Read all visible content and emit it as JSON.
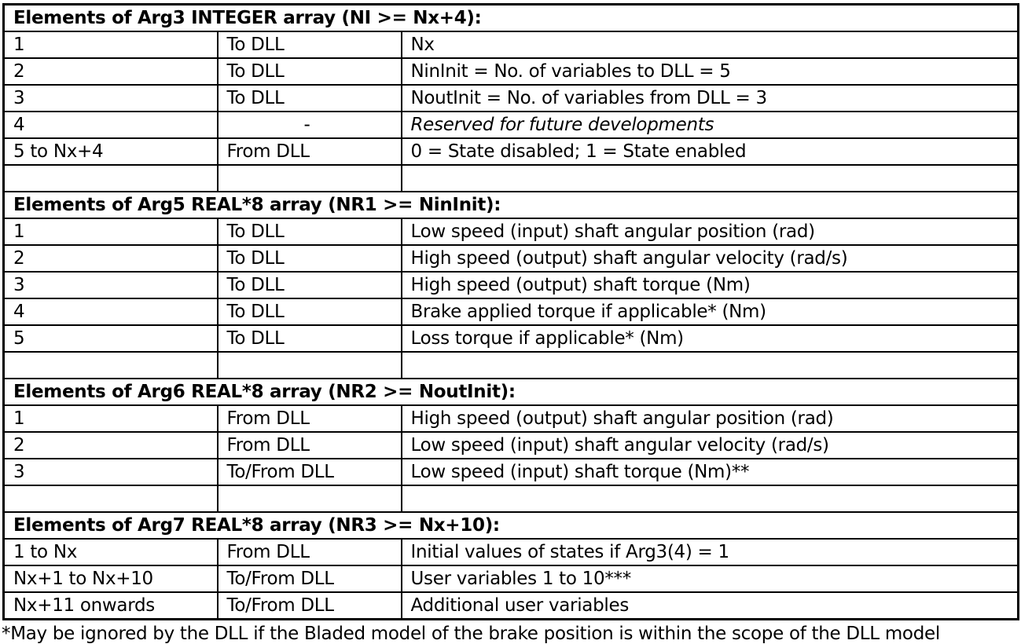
{
  "page": {
    "background": "#ffffff",
    "text_color": "#000000",
    "border_color": "#000000"
  },
  "table": {
    "sections": [
      {
        "header": "Elements of Arg3 INTEGER array (NI >= Nx+4):",
        "rows": [
          {
            "element": "1",
            "direction": "To DLL",
            "description": "Nx"
          },
          {
            "element": "2",
            "direction": "To DLL",
            "description": "NinInit = No. of variables to DLL = 5"
          },
          {
            "element": "3",
            "direction": "To DLL",
            "description": "NoutInit = No. of variables from DLL = 3"
          },
          {
            "element": "4",
            "direction": "-",
            "description": "Reserved for future developments"
          },
          {
            "element": "5 to Nx+4",
            "direction": "From DLL",
            "description": "0 = State disabled; 1 = State enabled"
          }
        ]
      },
      {
        "header": "Elements of Arg5 REAL*8 array (NR1 >= NinInit):",
        "rows": [
          {
            "element": "1",
            "direction": "To DLL",
            "description": "Low speed (input) shaft angular position (rad)"
          },
          {
            "element": "2",
            "direction": "To DLL",
            "description": "High speed (output) shaft angular velocity (rad/s)"
          },
          {
            "element": "3",
            "direction": "To DLL",
            "description": "High speed (output) shaft torque (Nm)"
          },
          {
            "element": "4",
            "direction": "To DLL",
            "description": "Brake applied torque if applicable* (Nm)"
          },
          {
            "element": "5",
            "direction": "To DLL",
            "description": "Loss torque if applicable* (Nm)"
          }
        ]
      },
      {
        "header": "Elements of Arg6 REAL*8 array (NR2 >= NoutInit):",
        "rows": [
          {
            "element": "1",
            "direction": "From DLL",
            "description": "High speed (output) shaft angular position (rad)"
          },
          {
            "element": "2",
            "direction": "From DLL",
            "description": "Low speed (input) shaft angular velocity (rad/s)"
          },
          {
            "element": "3",
            "direction": "To/From DLL",
            "description": "Low speed (input) shaft torque (Nm)**"
          }
        ]
      },
      {
        "header": "Elements of Arg7 REAL*8 array (NR3 >= Nx+10):",
        "rows": [
          {
            "element": "1 to Nx",
            "direction": "From DLL",
            "description": "Initial values of states if Arg3(4) = 1"
          },
          {
            "element": "Nx+1 to Nx+10",
            "direction": "To/From DLL",
            "description": "User variables 1 to 10***"
          },
          {
            "element": "Nx+11 onwards",
            "direction": "To/From DLL",
            "description": "Additional user variables"
          }
        ]
      }
    ],
    "footnote_partial": "*May be ignored by the DLL if the Bladed model of the brake position is within the scope of the DLL model"
  }
}
